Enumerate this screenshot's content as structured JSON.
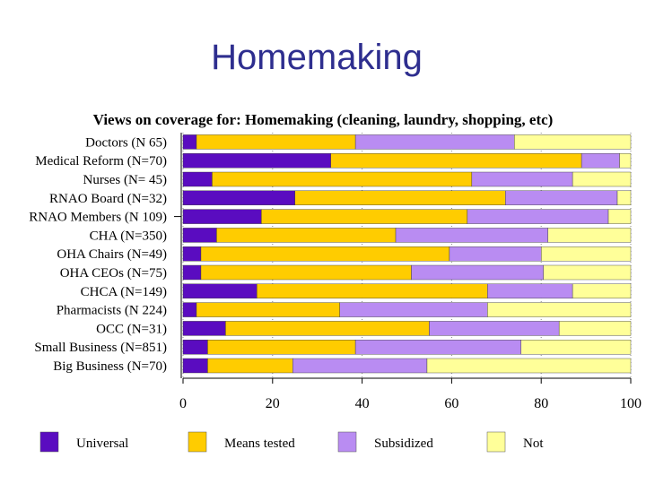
{
  "slide": {
    "title": "Homemaking"
  },
  "chart_data": {
    "type": "bar",
    "orientation": "horizontal",
    "stacked": true,
    "title": "Views on coverage for: Homemaking (cleaning, laundry, shopping, etc)",
    "categories": [
      "Doctors (N 65)",
      "Medical Reform (N=70)",
      "Nurses (N= 45)",
      "RNAO Board (N=32)",
      "RNAO Members (N 109)",
      "CHA (N=350)",
      "OHA Chairs (N=49)",
      "OHA CEOs (N=75)",
      "CHCA (N=149)",
      "Pharmacists (N 224)",
      "OCC (N=31)",
      "Small Business (N=851)",
      "Big Business (N=70)"
    ],
    "series": [
      {
        "name": "Universal",
        "color": "#5a0cc0",
        "values": [
          3,
          33,
          6.5,
          25,
          17.5,
          7.5,
          4,
          4,
          16.5,
          3,
          9.5,
          5.5,
          5.5
        ]
      },
      {
        "name": "Means tested",
        "color": "#ffcc00",
        "values": [
          35.5,
          56,
          58,
          47,
          46,
          40,
          55.5,
          47,
          51.5,
          32,
          45.5,
          33,
          19
        ]
      },
      {
        "name": "Subsidized",
        "color": "#b98cf2",
        "values": [
          35.5,
          8.5,
          22.5,
          25,
          31.5,
          34,
          20.5,
          29.5,
          19,
          33,
          29,
          37,
          30
        ]
      },
      {
        "name": "Not",
        "color": "#ffff99",
        "values": [
          26,
          2.5,
          13,
          3,
          5,
          18.5,
          20,
          19.5,
          13,
          32,
          16,
          24.5,
          45.5
        ]
      }
    ],
    "xlim": [
      0,
      100
    ],
    "xticks": [
      "0",
      "20",
      "40",
      "60",
      "80",
      "100"
    ],
    "legend_position": "bottom",
    "grid": true
  }
}
